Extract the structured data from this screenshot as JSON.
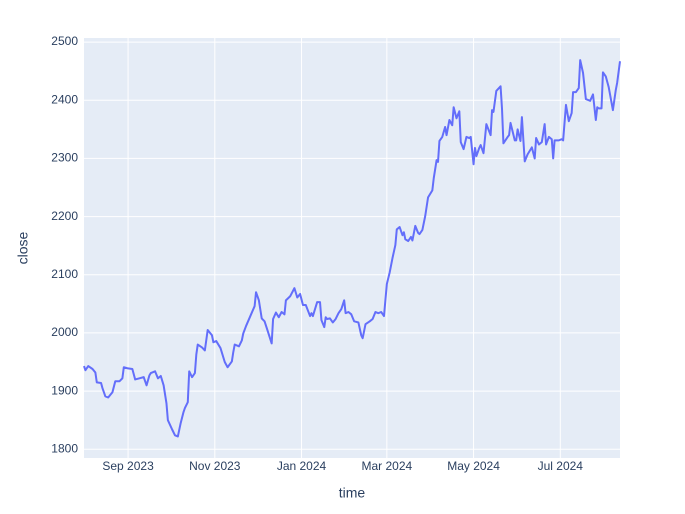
{
  "chart_data": {
    "type": "line",
    "xlabel": "time",
    "ylabel": "close",
    "x": [
      "2023-08-01",
      "2023-08-02",
      "2023-08-04",
      "2023-08-07",
      "2023-08-09",
      "2023-08-10",
      "2023-08-13",
      "2023-08-14",
      "2023-08-16",
      "2023-08-18",
      "2023-08-21",
      "2023-08-23",
      "2023-08-26",
      "2023-08-28",
      "2023-08-29",
      "2023-09-01",
      "2023-09-04",
      "2023-09-06",
      "2023-09-09",
      "2023-09-12",
      "2023-09-14",
      "2023-09-16",
      "2023-09-17",
      "2023-09-20",
      "2023-09-22",
      "2023-09-24",
      "2023-09-26",
      "2023-09-28",
      "2023-09-29",
      "2023-10-02",
      "2023-10-04",
      "2023-10-06",
      "2023-10-08",
      "2023-10-10",
      "2023-10-11",
      "2023-10-13",
      "2023-10-14",
      "2023-10-16",
      "2023-10-18",
      "2023-10-19",
      "2023-10-20",
      "2023-10-23",
      "2023-10-25",
      "2023-10-27",
      "2023-10-30",
      "2023-10-31",
      "2023-11-02",
      "2023-11-05",
      "2023-11-08",
      "2023-11-10",
      "2023-11-13",
      "2023-11-14",
      "2023-11-15",
      "2023-11-18",
      "2023-11-20",
      "2023-11-21",
      "2023-11-23",
      "2023-11-26",
      "2023-11-29",
      "2023-11-30",
      "2023-12-02",
      "2023-12-04",
      "2023-12-06",
      "2023-12-08",
      "2023-12-11",
      "2023-12-12",
      "2023-12-14",
      "2023-12-16",
      "2023-12-18",
      "2023-12-20",
      "2023-12-21",
      "2023-12-24",
      "2023-12-27",
      "2023-12-29",
      "2023-12-31",
      "2024-01-02",
      "2024-01-04",
      "2024-01-07",
      "2024-01-08",
      "2024-01-09",
      "2024-01-12",
      "2024-01-14",
      "2024-01-15",
      "2024-01-17",
      "2024-01-18",
      "2024-01-19",
      "2024-01-21",
      "2024-01-23",
      "2024-01-25",
      "2024-01-27",
      "2024-01-29",
      "2024-01-31",
      "2024-02-01",
      "2024-02-03",
      "2024-02-05",
      "2024-02-07",
      "2024-02-10",
      "2024-02-12",
      "2024-02-13",
      "2024-02-15",
      "2024-02-18",
      "2024-02-20",
      "2024-02-22",
      "2024-02-24",
      "2024-02-26",
      "2024-02-28",
      "2024-03-01",
      "2024-03-03",
      "2024-03-05",
      "2024-03-07",
      "2024-03-08",
      "2024-03-10",
      "2024-03-12",
      "2024-03-13",
      "2024-03-14",
      "2024-03-16",
      "2024-03-18",
      "2024-03-19",
      "2024-03-21",
      "2024-03-23",
      "2024-03-24",
      "2024-03-26",
      "2024-03-28",
      "2024-03-30",
      "2024-04-02",
      "2024-04-03",
      "2024-04-05",
      "2024-04-06",
      "2024-04-07",
      "2024-04-09",
      "2024-04-11",
      "2024-04-12",
      "2024-04-14",
      "2024-04-16",
      "2024-04-17",
      "2024-04-19",
      "2024-04-21",
      "2024-04-22",
      "2024-04-24",
      "2024-04-26",
      "2024-04-28",
      "2024-04-29",
      "2024-05-01",
      "2024-05-02",
      "2024-05-03",
      "2024-05-05",
      "2024-05-06",
      "2024-05-08",
      "2024-05-10",
      "2024-05-13",
      "2024-05-14",
      "2024-05-15",
      "2024-05-17",
      "2024-05-20",
      "2024-05-21",
      "2024-05-22",
      "2024-05-25",
      "2024-05-26",
      "2024-05-27",
      "2024-05-30",
      "2024-05-31",
      "2024-06-01",
      "2024-06-03",
      "2024-06-04",
      "2024-06-06",
      "2024-06-08",
      "2024-06-11",
      "2024-06-13",
      "2024-06-14",
      "2024-06-16",
      "2024-06-18",
      "2024-06-20",
      "2024-06-21",
      "2024-06-23",
      "2024-06-25",
      "2024-06-26",
      "2024-06-27",
      "2024-06-30",
      "2024-07-02",
      "2024-07-03",
      "2024-07-05",
      "2024-07-07",
      "2024-07-09",
      "2024-07-10",
      "2024-07-12",
      "2024-07-14",
      "2024-07-15",
      "2024-07-17",
      "2024-07-19",
      "2024-07-21",
      "2024-07-22",
      "2024-07-24",
      "2024-07-26",
      "2024-07-27",
      "2024-07-28",
      "2024-07-30",
      "2024-07-31",
      "2024-08-02",
      "2024-08-04",
      "2024-08-05",
      "2024-08-07",
      "2024-08-09",
      "2024-08-10",
      "2024-08-12"
    ],
    "values": [
      1943,
      1936,
      1943,
      1938,
      1932,
      1915,
      1914,
      1905,
      1891,
      1889,
      1898,
      1917,
      1917,
      1922,
      1941,
      1939,
      1938,
      1920,
      1922,
      1924,
      1910,
      1927,
      1931,
      1934,
      1922,
      1926,
      1910,
      1879,
      1850,
      1834,
      1824,
      1822,
      1845,
      1864,
      1871,
      1881,
      1934,
      1924,
      1931,
      1963,
      1980,
      1975,
      1970,
      2005,
      1996,
      1984,
      1986,
      1974,
      1950,
      1941,
      1951,
      1967,
      1980,
      1977,
      1987,
      1999,
      2012,
      2029,
      2046,
      2070,
      2056,
      2025,
      2020,
      2005,
      1982,
      2024,
      2035,
      2027,
      2036,
      2032,
      2056,
      2063,
      2077,
      2061,
      2067,
      2048,
      2048,
      2029,
      2034,
      2029,
      2053,
      2053,
      2022,
      2010,
      2027,
      2024,
      2025,
      2018,
      2024,
      2034,
      2041,
      2056,
      2034,
      2036,
      2032,
      2020,
      2018,
      1996,
      1991,
      2015,
      2020,
      2024,
      2036,
      2034,
      2036,
      2029,
      2084,
      2104,
      2129,
      2151,
      2178,
      2182,
      2168,
      2173,
      2161,
      2158,
      2165,
      2159,
      2184,
      2172,
      2170,
      2177,
      2201,
      2233,
      2245,
      2266,
      2297,
      2294,
      2330,
      2337,
      2354,
      2340,
      2366,
      2357,
      2388,
      2369,
      2381,
      2328,
      2316,
      2337,
      2335,
      2337,
      2290,
      2318,
      2304,
      2318,
      2323,
      2309,
      2359,
      2340,
      2383,
      2380,
      2416,
      2424,
      2386,
      2326,
      2337,
      2340,
      2361,
      2331,
      2331,
      2350,
      2330,
      2371,
      2295,
      2307,
      2319,
      2300,
      2335,
      2324,
      2328,
      2359,
      2324,
      2337,
      2333,
      2300,
      2331,
      2331,
      2333,
      2331,
      2392,
      2364,
      2378,
      2414,
      2414,
      2421,
      2469,
      2447,
      2402,
      2400,
      2399,
      2410,
      2366,
      2388,
      2386,
      2386,
      2448,
      2441,
      2423,
      2410,
      2383,
      2417,
      2430,
      2467
    ],
    "color": "#636efa",
    "xlim": [
      "2023-08-01",
      "2024-08-12"
    ],
    "xticks": [
      {
        "value": "2023-09-01",
        "label": "Sep 2023"
      },
      {
        "value": "2023-11-01",
        "label": "Nov 2023"
      },
      {
        "value": "2024-01-01",
        "label": "Jan 2024"
      },
      {
        "value": "2024-03-01",
        "label": "Mar 2024"
      },
      {
        "value": "2024-05-01",
        "label": "May 2024"
      },
      {
        "value": "2024-07-01",
        "label": "Jul 2024"
      }
    ],
    "ylim": [
      1785,
      2507
    ],
    "yticks": [
      1800,
      1900,
      2000,
      2100,
      2200,
      2300,
      2400,
      2500
    ],
    "grid": true
  }
}
